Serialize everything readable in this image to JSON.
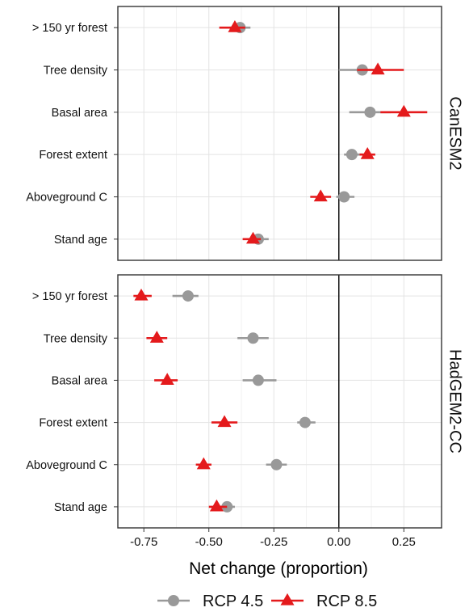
{
  "chart_data": {
    "type": "scatter",
    "xlabel": "Net change (proportion)",
    "xlim": [
      -0.85,
      0.395
    ],
    "x_ticks": [
      -0.75,
      -0.5,
      -0.25,
      0.0,
      0.25
    ],
    "x_tick_labels": [
      "-0.75",
      "-0.50",
      "-0.25",
      "0.00",
      "0.25"
    ],
    "reference_line": 0,
    "grid": true,
    "legend_position": "bottom",
    "categories": [
      "> 150 yr forest",
      "Tree density",
      "Basal area",
      "Forest extent",
      "Aboveground C",
      "Stand age"
    ],
    "series_styles": [
      {
        "name": "RCP 4.5",
        "marker": "circle",
        "color": "#999999"
      },
      {
        "name": "RCP 8.5",
        "marker": "triangle",
        "color": "#e41a1c"
      }
    ],
    "panels": [
      {
        "label": "CanESM2",
        "series": [
          {
            "name": "RCP 4.5",
            "values": [
              -0.38,
              0.09,
              0.12,
              0.05,
              0.02,
              -0.31
            ],
            "ci_low": [
              -0.42,
              0.0,
              0.04,
              0.02,
              -0.01,
              -0.34
            ],
            "ci_high": [
              -0.34,
              0.17,
              0.2,
              0.09,
              0.06,
              -0.27
            ]
          },
          {
            "name": "RCP 8.5",
            "values": [
              -0.4,
              0.15,
              0.25,
              0.11,
              -0.07,
              -0.33
            ],
            "ci_low": [
              -0.46,
              0.07,
              0.16,
              0.08,
              -0.11,
              -0.37
            ],
            "ci_high": [
              -0.36,
              0.25,
              0.34,
              0.14,
              -0.03,
              -0.3
            ]
          }
        ]
      },
      {
        "label": "HadGEM2-CC",
        "series": [
          {
            "name": "RCP 4.5",
            "values": [
              -0.58,
              -0.33,
              -0.31,
              -0.13,
              -0.24,
              -0.43
            ],
            "ci_low": [
              -0.64,
              -0.39,
              -0.37,
              -0.16,
              -0.28,
              -0.46
            ],
            "ci_high": [
              -0.54,
              -0.27,
              -0.24,
              -0.09,
              -0.2,
              -0.4
            ]
          },
          {
            "name": "RCP 8.5",
            "values": [
              -0.76,
              -0.7,
              -0.66,
              -0.44,
              -0.52,
              -0.47
            ],
            "ci_low": [
              -0.79,
              -0.74,
              -0.71,
              -0.49,
              -0.55,
              -0.5
            ],
            "ci_high": [
              -0.72,
              -0.66,
              -0.62,
              -0.39,
              -0.49,
              -0.43
            ]
          }
        ]
      }
    ]
  }
}
